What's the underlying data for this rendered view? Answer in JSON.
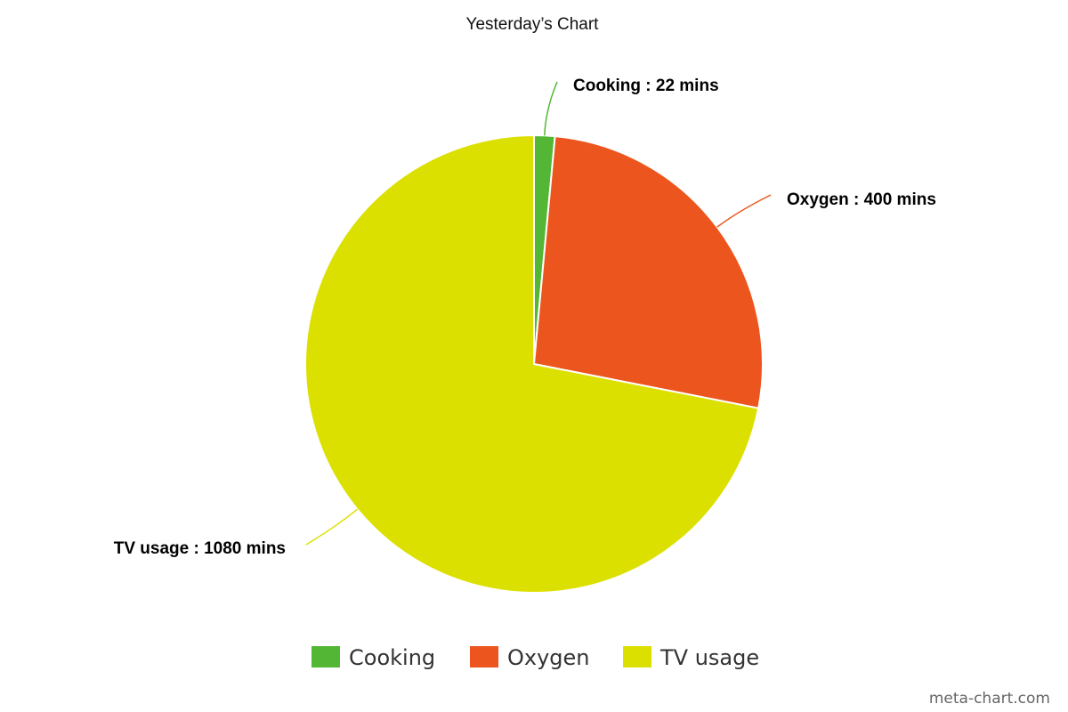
{
  "chart_data": {
    "type": "pie",
    "title": "Yesterday’s Chart",
    "slices": [
      {
        "label": "Cooking",
        "value": 22,
        "unit": "mins",
        "color": "#53b635"
      },
      {
        "label": "Oxygen",
        "value": 400,
        "unit": "mins",
        "color": "#ec561e"
      },
      {
        "label": "TV usage",
        "value": 1080,
        "unit": "mins",
        "color": "#dce000"
      }
    ],
    "data_labels": [
      "Cooking : 22 mins",
      "Oxygen : 400 mins",
      "TV usage : 1080 mins"
    ],
    "legend": {
      "placement": "bottom",
      "entries": [
        "Cooking",
        "Oxygen",
        "TV usage"
      ]
    },
    "start_angle_deg": 0,
    "direction": "clockwise"
  },
  "watermark": "meta-chart.com"
}
